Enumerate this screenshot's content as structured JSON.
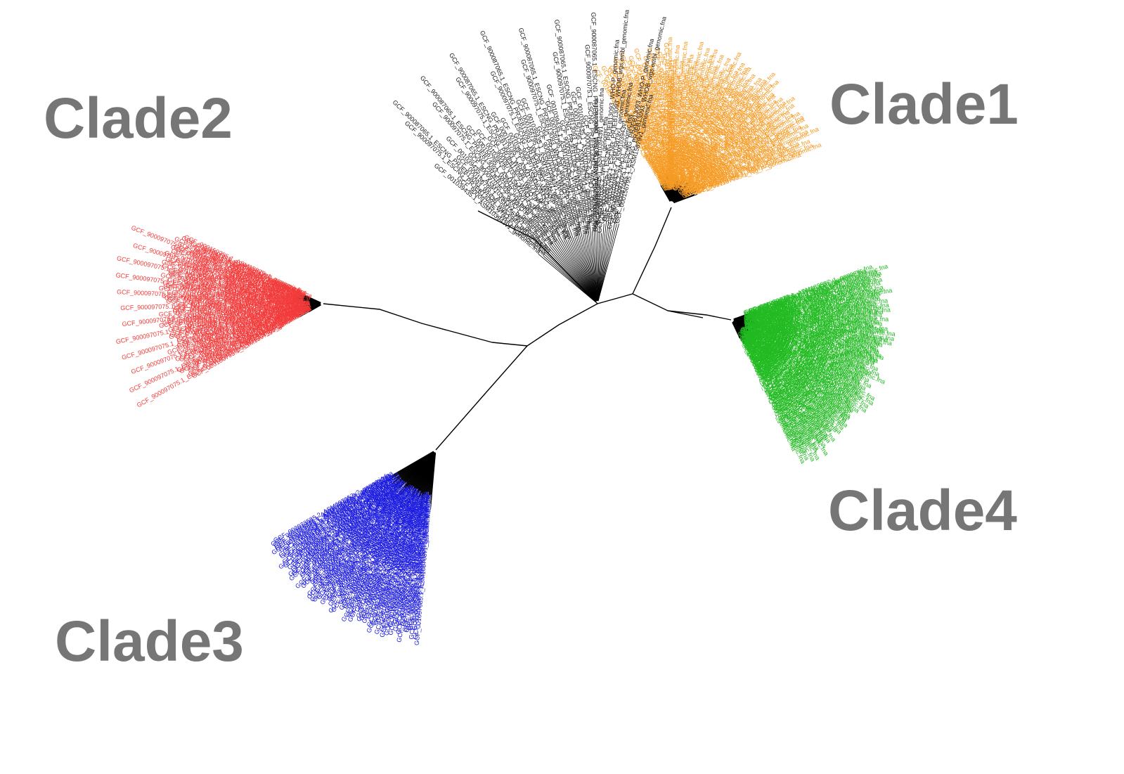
{
  "figure": {
    "type": "unrooted-phylogenetic-tree",
    "clades": [
      {
        "id": "clade1",
        "label": "Clade1",
        "color": "#f59a23",
        "tips": 110
      },
      {
        "id": "clade2",
        "label": "Clade2",
        "color": "#f23b3b",
        "tips": 85
      },
      {
        "id": "clade3",
        "label": "Clade3",
        "color": "#1a1adf",
        "tips": 95
      },
      {
        "id": "clade4",
        "label": "Clade4",
        "color": "#22bb22",
        "tips": 150
      },
      {
        "id": "other",
        "label": "",
        "color": "#1a1a1a",
        "tips": 45
      }
    ],
    "tip_labels": [
      {
        "text": "GCF_001039435.1_ASM103943v1_genomic.fna",
        "clade": "other"
      },
      {
        "text": "GCF_900097035.2_WHO-L_genomic.fna",
        "clade": "other"
      },
      {
        "text": "GCF_900097075.1_ESCNG_PRJEB13093_WHO-P_genomic.fna",
        "clade": "other"
      },
      {
        "text": "GCF_900087065.1_ESCNG_PRJEB13093_WHOB_wgs.embl_genomic.fna",
        "clade": "other"
      },
      {
        "text": "GCF_000156795.1_ASM15679v1_genomic.fna",
        "clade": "other"
      },
      {
        "text": "GCF_000150755.1_ASM15075v1_genomic.fna",
        "clade": "clade2"
      },
      {
        "text": "GCF_900097075.1_ESCNG_PRJEB13093_WHO-N_genomic.fna",
        "clade": "clade2"
      },
      {
        "text": "GCF_001025865.1_ASM102586v1_genomic.fna",
        "clade": "clade2"
      },
      {
        "text": "GCF_000273685.1_PB_N_genomic.fna",
        "clade": "clade2"
      },
      {
        "text": "GCF_003789705.1_ASM378970v1_genomic.fna",
        "clade": "clade2"
      },
      {
        "text": "GCF_001047255.1_ASM104725v1_genomic.fna",
        "clade": "clade2"
      },
      {
        "text": "GCF_002289065.1_ASM228906v1_genomic.fna",
        "clade": "clade2"
      },
      {
        "text": "GCF_001057685.1_ASM105768v1_genomic.fna",
        "clade": "clade3"
      },
      {
        "text": "GCF_001026475.1_ASM102647v1_genomic.fna",
        "clade": "clade3"
      },
      {
        "text": "GCF_001593895.1_ASM159389v1_genomic.fna",
        "clade": "clade3"
      },
      {
        "text": "GCF_002073535.2_ASM207353v2_genomic.fna",
        "clade": "clade3"
      },
      {
        "text": "GCF_003855435.1_ASM385543v1_genomic.fna",
        "clade": "clade3"
      },
      {
        "text": "GCF_001342875.1_ASM134287v1_genomic.fna",
        "clade": "clade3"
      },
      {
        "text": "GCF_000763255.1_ASM76325v1_genomic.fna",
        "clade": "clade3"
      },
      {
        "text": "GCF_001859875.1_ASM185987v1_genomic.fna",
        "clade": "clade4"
      },
      {
        "text": "GCF_900451055.1_47690_C01_genomic.fna",
        "clade": "clade4"
      },
      {
        "text": "GCF_000445975.1_WHO-G01_genomic.fna",
        "clade": "clade4"
      },
      {
        "text": "GCF_001859835.1_ASM185983v1_genomic.fna",
        "clade": "clade1"
      },
      {
        "text": "GCF_001187035.1_Ng_F_genomic.fna",
        "clade": "clade1"
      },
      {
        "text": "GCF_900451065.1_47690_C01_genomic.fna",
        "clade": "clade1"
      }
    ]
  }
}
